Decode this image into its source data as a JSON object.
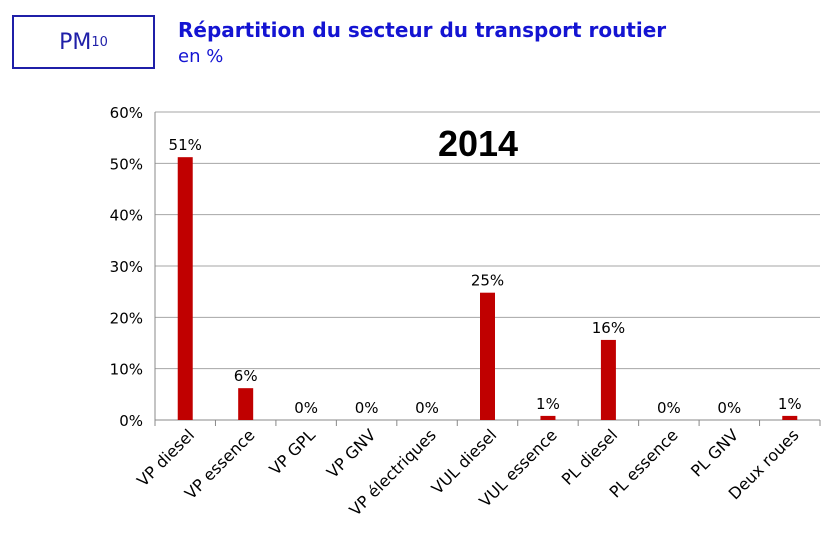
{
  "header": {
    "pollutant_main": "PM",
    "pollutant_sub": "10",
    "title": "Répartition du secteur du transport routier",
    "subtitle": "en %"
  },
  "chart_data": {
    "type": "bar",
    "title": "2014",
    "categories": [
      "VP diesel",
      "VP essence",
      "VP GPL",
      "VP GNV",
      "VP électriques",
      "VUL diesel",
      "VUL essence",
      "PL diesel",
      "PL essence",
      "PL GNV",
      "Deux roues"
    ],
    "values": [
      51.2,
      6.2,
      0,
      0,
      0,
      24.8,
      0.8,
      15.6,
      0,
      0,
      0.8
    ],
    "data_labels": [
      "51%",
      "6%",
      "0%",
      "0%",
      "0%",
      "25%",
      "1%",
      "16%",
      "0%",
      "0%",
      "1%"
    ],
    "yticks": [
      "0%",
      "10%",
      "20%",
      "30%",
      "40%",
      "50%",
      "60%"
    ],
    "ylim": [
      0,
      60
    ],
    "grid": true,
    "bar_color": "#c00000"
  }
}
